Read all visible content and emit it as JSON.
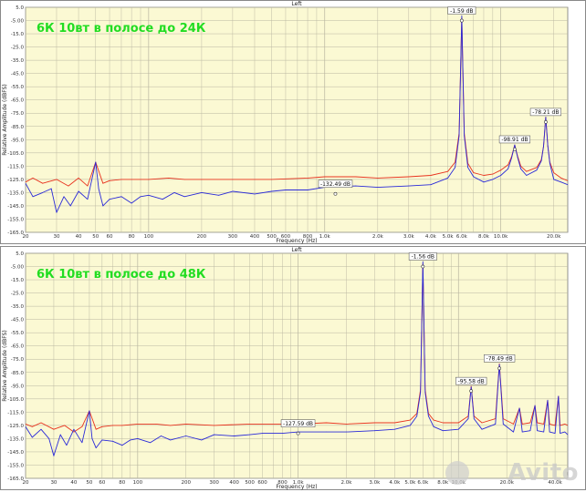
{
  "colors": {
    "background": "#fbf9d3",
    "grid": "#b9b6a0",
    "series_red": "#e8321e",
    "series_blue": "#2a2ad8",
    "label_green": "#22dd22"
  },
  "chart_data": [
    {
      "type": "line",
      "title": "Left",
      "overlay_text": "6К 10вт в полосе до 24К",
      "xlabel": "Frequency (Hz)",
      "ylabel": "Relative Amplitude (dBFS)",
      "xscale": "log",
      "xlim": [
        20,
        24000
      ],
      "ylim": [
        -165,
        5
      ],
      "y_ticks": [
        "5.0",
        "-5.00",
        "-15.0",
        "-25.0",
        "-35.0",
        "-45.0",
        "-55.0",
        "-65.0",
        "-75.0",
        "-85.0",
        "-95.0",
        "-105.0",
        "-115.0",
        "-125.0",
        "-135.0",
        "-145.0",
        "-155.0",
        "-165.0"
      ],
      "x_tick_labels": [
        {
          "v": 20,
          "t": "20"
        },
        {
          "v": 30,
          "t": "30"
        },
        {
          "v": 40,
          "t": "40"
        },
        {
          "v": 50,
          "t": "50"
        },
        {
          "v": 60,
          "t": "60"
        },
        {
          "v": 80,
          "t": "80"
        },
        {
          "v": 100,
          "t": "100"
        },
        {
          "v": 200,
          "t": "200"
        },
        {
          "v": 300,
          "t": "300"
        },
        {
          "v": 400,
          "t": "400"
        },
        {
          "v": 500,
          "t": "500"
        },
        {
          "v": 600,
          "t": "600"
        },
        {
          "v": 800,
          "t": "800"
        },
        {
          "v": 1000,
          "t": "1.0k"
        },
        {
          "v": 2000,
          "t": "2.0k"
        },
        {
          "v": 3000,
          "t": "3.0k"
        },
        {
          "v": 4000,
          "t": "4.0k"
        },
        {
          "v": 5000,
          "t": "5.0k"
        },
        {
          "v": 6000,
          "t": "6.0k"
        },
        {
          "v": 8000,
          "t": "8.0k"
        },
        {
          "v": 10000,
          "t": "10.0k"
        },
        {
          "v": 20000,
          "t": "20.0k"
        }
      ],
      "annotations": [
        {
          "x": 6000,
          "y": -1.59,
          "t": "-1.59 dB"
        },
        {
          "x": 12000,
          "y": -98.91,
          "t": "-98.91 dB"
        },
        {
          "x": 18000,
          "y": -78.21,
          "t": "-78.21 dB"
        },
        {
          "x": 1150,
          "y": -132.49,
          "t": "-132.49 dB"
        }
      ],
      "series": [
        {
          "color": "red",
          "x": [
            20,
            22,
            25,
            30,
            35,
            40,
            45,
            50,
            55,
            60,
            70,
            80,
            100,
            130,
            160,
            200,
            300,
            500,
            800,
            1000,
            1500,
            2000,
            3000,
            4000,
            5000,
            5500,
            5800,
            6000,
            6200,
            6500,
            7000,
            8000,
            9000,
            10000,
            11000,
            11500,
            12000,
            12500,
            13000,
            14000,
            16000,
            17000,
            17500,
            18000,
            18500,
            19000,
            20000,
            22000,
            24000
          ],
          "y": [
            -127,
            -124,
            -128,
            -125,
            -130,
            -124,
            -130,
            -112,
            -128,
            -126,
            -125,
            -125,
            -125,
            -124,
            -125,
            -125,
            -125,
            -125,
            -124,
            -123,
            -123,
            -124,
            -123,
            -122,
            -119,
            -112,
            -90,
            -3,
            -90,
            -113,
            -120,
            -122,
            -121,
            -118,
            -114,
            -108,
            -99,
            -108,
            -115,
            -119,
            -116,
            -110,
            -100,
            -78,
            -100,
            -112,
            -120,
            -124,
            -126
          ]
        },
        {
          "color": "blue",
          "x": [
            20,
            22,
            25,
            28,
            30,
            33,
            36,
            40,
            45,
            50,
            52,
            55,
            60,
            70,
            80,
            90,
            100,
            120,
            140,
            160,
            200,
            250,
            300,
            400,
            500,
            600,
            800,
            1000,
            1500,
            2000,
            3000,
            4000,
            5000,
            5500,
            5800,
            6000,
            6200,
            6500,
            7000,
            8000,
            9000,
            10000,
            11000,
            11500,
            12000,
            12500,
            13000,
            14000,
            16000,
            17000,
            17500,
            18000,
            18500,
            19000,
            20000,
            22000,
            24000
          ],
          "y": [
            -128,
            -138,
            -135,
            -132,
            -150,
            -138,
            -145,
            -134,
            -140,
            -112,
            -132,
            -145,
            -140,
            -138,
            -143,
            -138,
            -137,
            -140,
            -135,
            -138,
            -135,
            -137,
            -134,
            -136,
            -134,
            -133,
            -133,
            -131,
            -130,
            -131,
            -130,
            -129,
            -124,
            -116,
            -92,
            -1.59,
            -92,
            -116,
            -123,
            -127,
            -125,
            -122,
            -117,
            -109,
            -99,
            -109,
            -117,
            -122,
            -118,
            -111,
            -100,
            -78,
            -100,
            -113,
            -125,
            -127,
            -129
          ]
        }
      ]
    },
    {
      "type": "line",
      "title": "Left",
      "overlay_text": "6К 10вт в полосе до 48К",
      "xlabel": "Frequency (Hz)",
      "ylabel": "Relative Amplitude (dBFS)",
      "xscale": "log",
      "xlim": [
        20,
        48000
      ],
      "ylim": [
        -165,
        5
      ],
      "y_ticks": [
        "5.0",
        "-5.00",
        "-15.0",
        "-25.0",
        "-35.0",
        "-45.0",
        "-55.0",
        "-65.0",
        "-75.0",
        "-85.0",
        "-95.0",
        "-105.0",
        "-115.0",
        "-125.0",
        "-135.0",
        "-145.0",
        "-155.0",
        "-165.0"
      ],
      "x_tick_labels": [
        {
          "v": 20,
          "t": "20"
        },
        {
          "v": 30,
          "t": "30"
        },
        {
          "v": 40,
          "t": "40"
        },
        {
          "v": 50,
          "t": "50"
        },
        {
          "v": 60,
          "t": "60"
        },
        {
          "v": 80,
          "t": "80"
        },
        {
          "v": 100,
          "t": "100"
        },
        {
          "v": 200,
          "t": "200"
        },
        {
          "v": 300,
          "t": "300"
        },
        {
          "v": 400,
          "t": "400"
        },
        {
          "v": 500,
          "t": "500"
        },
        {
          "v": 600,
          "t": "600"
        },
        {
          "v": 800,
          "t": "800"
        },
        {
          "v": 1000,
          "t": "1.0k"
        },
        {
          "v": 2000,
          "t": "2.0k"
        },
        {
          "v": 3000,
          "t": "3.0k"
        },
        {
          "v": 4000,
          "t": "4.0k"
        },
        {
          "v": 5000,
          "t": "5.0k"
        },
        {
          "v": 6000,
          "t": "6.0k"
        },
        {
          "v": 8000,
          "t": "8.0k"
        },
        {
          "v": 10000,
          "t": "10.0k"
        },
        {
          "v": 20000,
          "t": "20.0k"
        },
        {
          "v": 40000,
          "t": "40.0k"
        }
      ],
      "annotations": [
        {
          "x": 6000,
          "y": -1.56,
          "t": "-1.56 dB"
        },
        {
          "x": 12000,
          "y": -95.58,
          "t": "-95.58 dB"
        },
        {
          "x": 18000,
          "y": -78.49,
          "t": "-78.49 dB"
        },
        {
          "x": 1000,
          "y": -127.59,
          "t": "-127.59 dB"
        }
      ],
      "series": [
        {
          "color": "red",
          "x": [
            20,
            22,
            25,
            30,
            35,
            40,
            45,
            50,
            55,
            60,
            70,
            80,
            100,
            130,
            160,
            200,
            300,
            500,
            800,
            1000,
            1500,
            2000,
            3000,
            4000,
            5000,
            5500,
            5800,
            6000,
            6200,
            6500,
            7000,
            8000,
            10000,
            11500,
            12000,
            12500,
            14000,
            17000,
            18000,
            19000,
            22000,
            24000,
            25000,
            28000,
            30000,
            31000,
            34000,
            36000,
            37000,
            40000,
            42000,
            43000,
            46000,
            48000
          ],
          "y": [
            -124,
            -126,
            -123,
            -128,
            -125,
            -130,
            -126,
            -114,
            -128,
            -126,
            -125,
            -125,
            -124,
            -124,
            -125,
            -124,
            -125,
            -124,
            -124,
            -124,
            -123,
            -124,
            -123,
            -123,
            -121,
            -116,
            -98,
            -3,
            -98,
            -116,
            -121,
            -123,
            -123,
            -118,
            -95.58,
            -118,
            -123,
            -120,
            -78.49,
            -120,
            -124,
            -112,
            -124,
            -123,
            -110,
            -123,
            -124,
            -106,
            -124,
            -125,
            -103,
            -125,
            -124,
            -125
          ]
        },
        {
          "color": "blue",
          "x": [
            20,
            22,
            25,
            28,
            30,
            33,
            36,
            40,
            45,
            50,
            52,
            55,
            60,
            70,
            80,
            90,
            100,
            120,
            140,
            160,
            200,
            250,
            300,
            400,
            500,
            600,
            800,
            1000,
            1500,
            2000,
            3000,
            4000,
            5000,
            5500,
            5800,
            6000,
            6200,
            6500,
            7000,
            8000,
            10000,
            11500,
            12000,
            12500,
            14000,
            17000,
            18000,
            19000,
            22000,
            24000,
            25000,
            28000,
            30000,
            31000,
            34000,
            36000,
            37000,
            40000,
            42000,
            43000,
            46000,
            48000
          ],
          "y": [
            -126,
            -134,
            -128,
            -135,
            -148,
            -132,
            -140,
            -128,
            -138,
            -114,
            -135,
            -142,
            -136,
            -137,
            -140,
            -136,
            -135,
            -138,
            -133,
            -136,
            -133,
            -136,
            -132,
            -133,
            -132,
            -131,
            -131,
            -130,
            -130,
            -130,
            -129,
            -128,
            -125,
            -118,
            -100,
            -1.56,
            -100,
            -118,
            -126,
            -129,
            -128,
            -120,
            -96,
            -120,
            -128,
            -124,
            -79,
            -124,
            -130,
            -112,
            -130,
            -129,
            -110,
            -129,
            -130,
            -106,
            -130,
            -131,
            -103,
            -131,
            -130,
            -132
          ]
        }
      ]
    }
  ],
  "watermark": "Avito"
}
